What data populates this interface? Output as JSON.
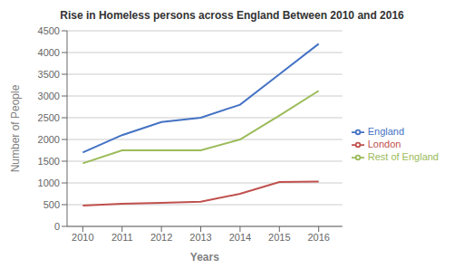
{
  "chart_data": {
    "type": "line",
    "title": "Rise in Homeless persons across England Between 2010 and 2016",
    "xlabel": "Years",
    "ylabel": "Number of People",
    "x": [
      2010,
      2011,
      2012,
      2013,
      2014,
      2015,
      2016
    ],
    "series": [
      {
        "name": "England",
        "color": "#4472C4",
        "values": [
          1700,
          2100,
          2400,
          2500,
          2800,
          3500,
          4200
        ]
      },
      {
        "name": "London",
        "color": "#C0504D",
        "values": [
          480,
          520,
          540,
          570,
          750,
          1020,
          1030
        ]
      },
      {
        "name": "Rest of England",
        "color": "#9BBB59",
        "values": [
          1450,
          1750,
          1750,
          1750,
          2000,
          2550,
          3120
        ]
      }
    ],
    "xlim": [
      2009.6,
      2016.6
    ],
    "xticks": [
      2010,
      2011,
      2012,
      2013,
      2014,
      2015,
      2016
    ],
    "ylim": [
      0,
      4500
    ],
    "yticks": [
      0,
      500,
      1000,
      1500,
      2000,
      2500,
      3000,
      3500,
      4000,
      4500
    ],
    "grid": true,
    "legend": "right"
  }
}
